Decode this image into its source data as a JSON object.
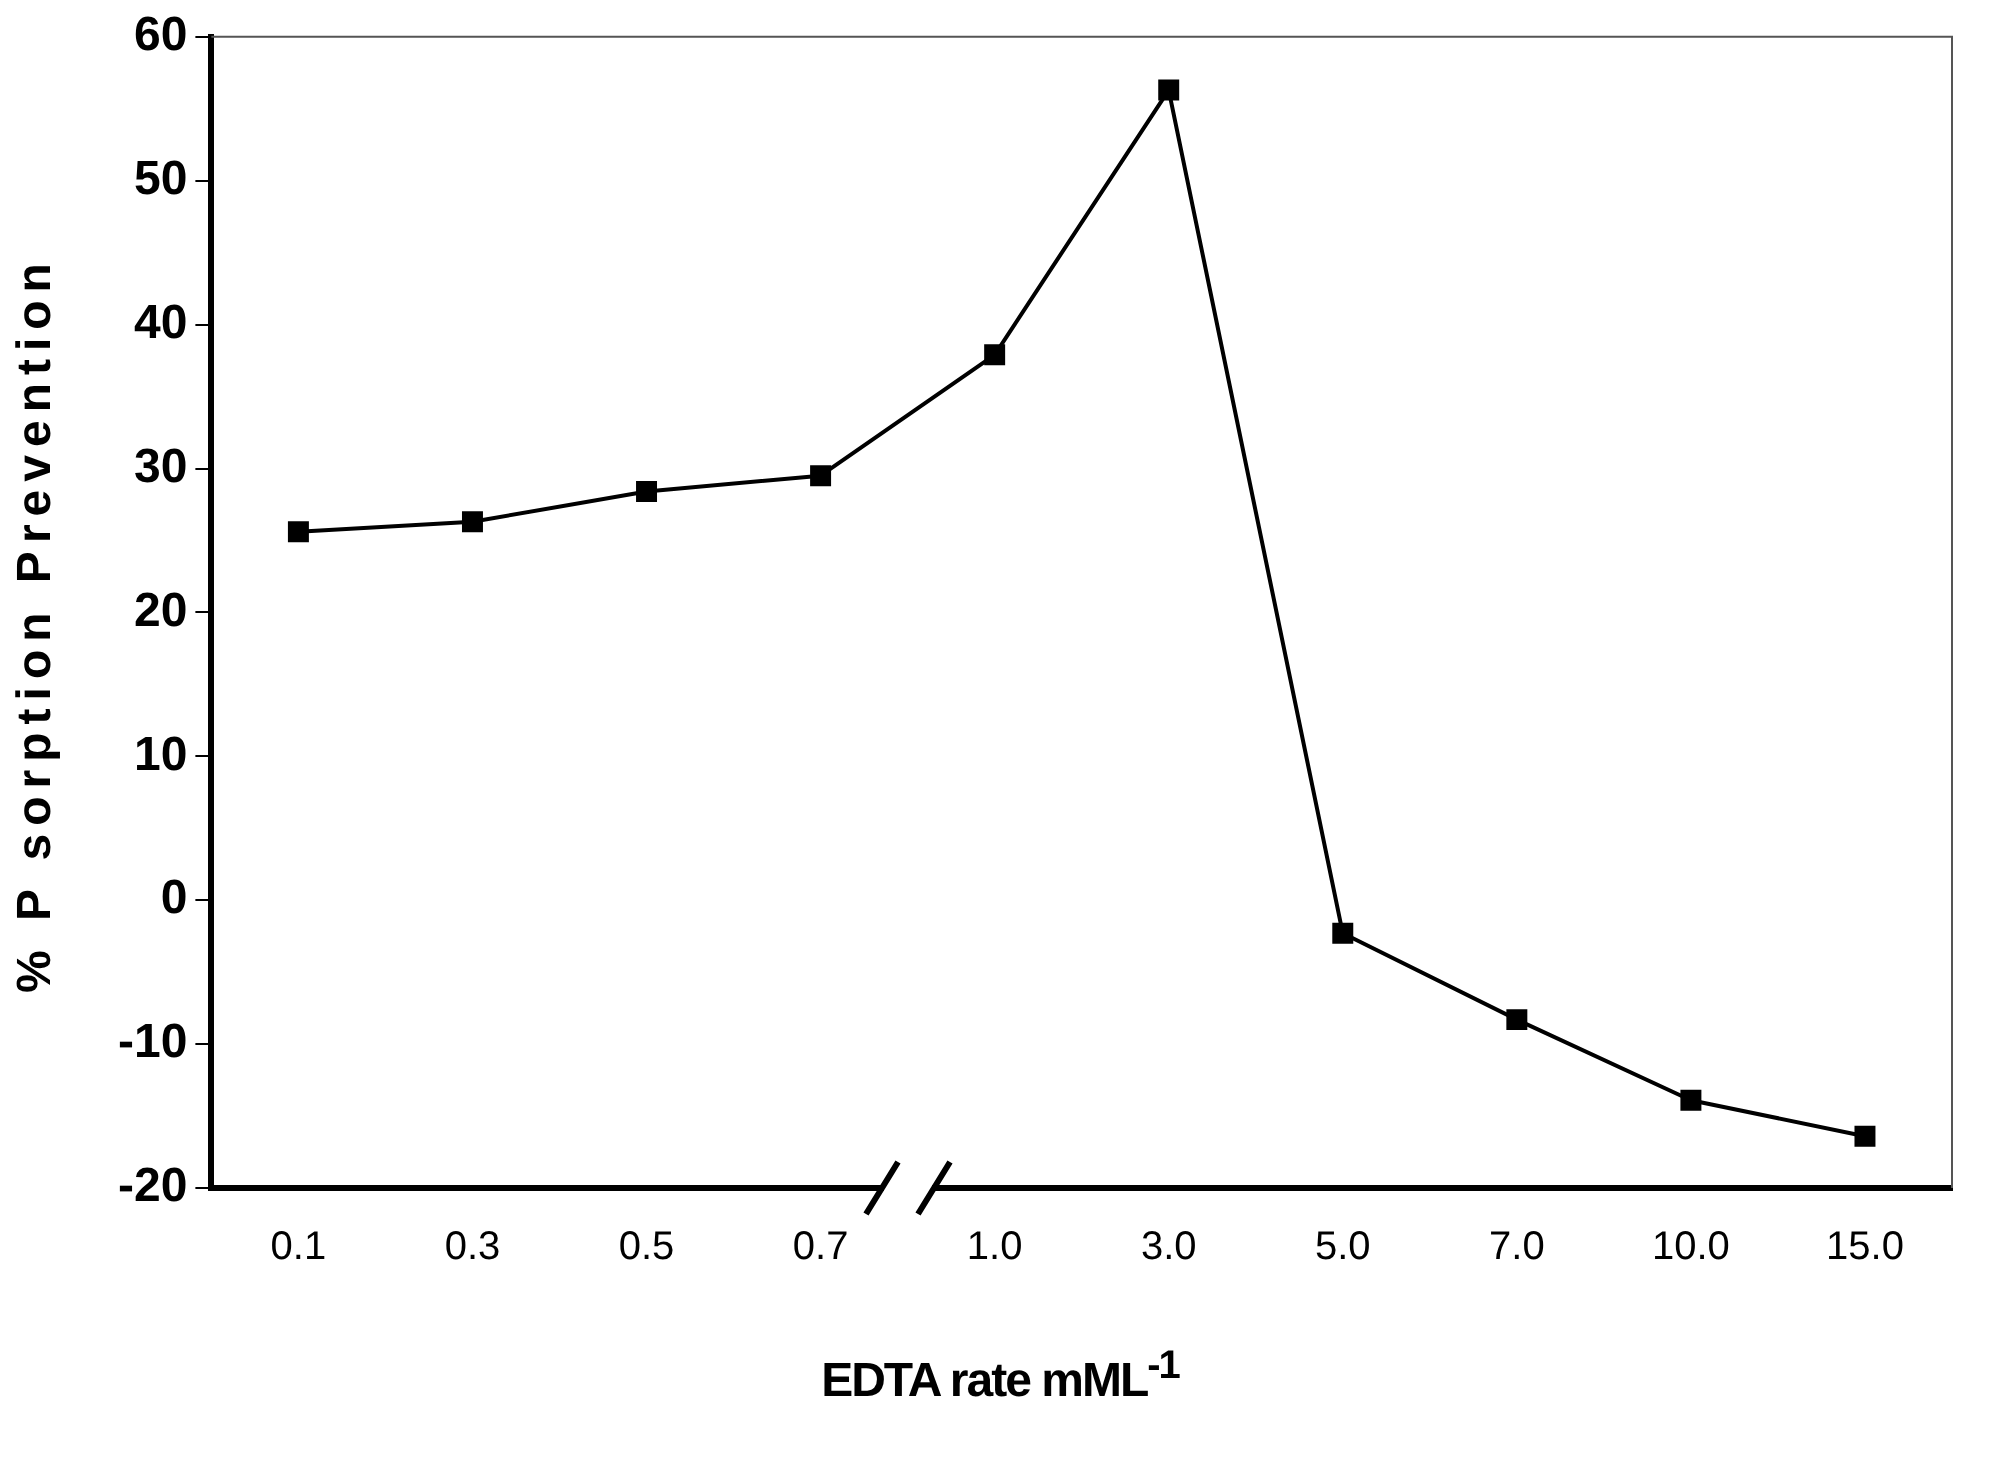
{
  "chart_data": {
    "type": "line",
    "xlabel": "EDTA rate mML$^{-1}$",
    "ylabel": "% P sorption Prevention",
    "categories": [
      "0.1",
      "0.3",
      "0.5",
      "0.7",
      "1.0",
      "3.0",
      "5.0",
      "7.0",
      "10.0",
      "15.0"
    ],
    "series": [
      {
        "color": "#000000",
        "values": [
          25.6,
          26.3,
          28.4,
          29.5,
          37.9,
          56.3,
          -2.3,
          -8.3,
          -13.9,
          -16.4
        ]
      }
    ],
    "ylim": [
      -20,
      60
    ],
    "yticks": [
      -20,
      -10,
      0,
      10,
      20,
      30,
      40,
      50,
      60
    ],
    "grid": false,
    "legend": false,
    "marker": "square",
    "line_style": "solid"
  }
}
